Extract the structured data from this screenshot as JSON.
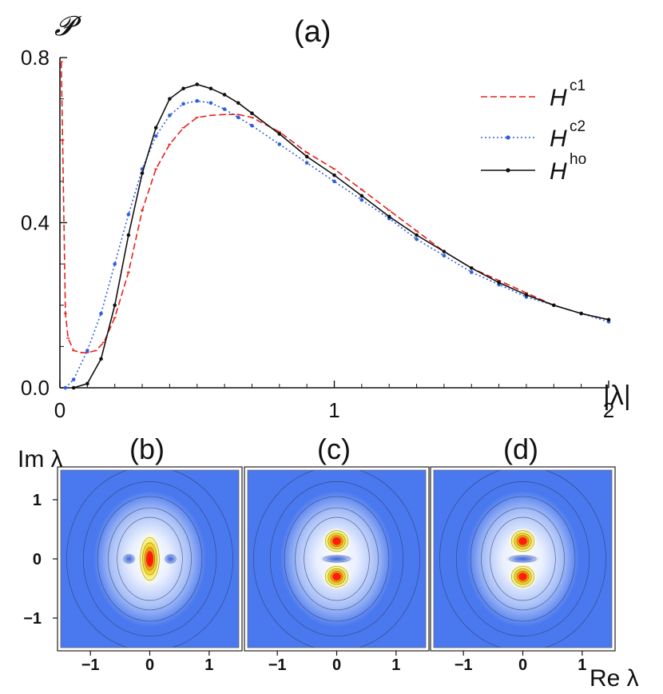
{
  "colors": {
    "red": "#e8221c",
    "blue": "#2f5fe0",
    "black": "#111111",
    "panel_bg": "#4a78ee"
  },
  "main_chart": {
    "panel_label": "(a)",
    "ylabel": "𝓟",
    "xlabel": "|λ|",
    "xlim": [
      0,
      2
    ],
    "ylim": [
      0,
      0.8
    ],
    "x_ticks": [
      {
        "v": 0,
        "label": "0"
      },
      {
        "v": 1,
        "label": "1"
      },
      {
        "v": 2,
        "label": "2"
      }
    ],
    "y_ticks": [
      {
        "v": 0,
        "label": "0.0"
      },
      {
        "v": 0.4,
        "label": "0.4"
      },
      {
        "v": 0.8,
        "label": "0.8"
      }
    ],
    "legend": [
      {
        "base": "H",
        "sup": "c1"
      },
      {
        "base": "H",
        "sup": "c2"
      },
      {
        "base": "H",
        "sup": "ho"
      }
    ]
  },
  "chart_data": [
    {
      "type": "line",
      "title": "(a)",
      "xlabel": "|λ|",
      "ylabel": "𝓟",
      "xlim": [
        0,
        2
      ],
      "ylim": [
        0,
        0.8
      ],
      "legend_position": "top-right",
      "series": [
        {
          "name": "H^c1",
          "x": [
            0.005,
            0.01,
            0.02,
            0.03,
            0.05,
            0.08,
            0.1,
            0.13,
            0.16,
            0.2,
            0.25,
            0.3,
            0.35,
            0.4,
            0.45,
            0.5,
            0.55,
            0.6,
            0.65,
            0.7,
            0.8,
            0.9,
            1.0,
            1.1,
            1.2,
            1.3,
            1.4,
            1.5,
            1.6,
            1.7,
            1.8,
            1.9,
            2.0
          ],
          "y": [
            0.79,
            0.6,
            0.18,
            0.12,
            0.09,
            0.085,
            0.085,
            0.09,
            0.11,
            0.17,
            0.28,
            0.43,
            0.53,
            0.59,
            0.63,
            0.655,
            0.66,
            0.662,
            0.662,
            0.655,
            0.62,
            0.57,
            0.53,
            0.48,
            0.43,
            0.38,
            0.33,
            0.29,
            0.26,
            0.23,
            0.2,
            0.18,
            0.165
          ]
        },
        {
          "name": "H^c2",
          "x": [
            0.02,
            0.05,
            0.1,
            0.15,
            0.2,
            0.25,
            0.3,
            0.35,
            0.4,
            0.45,
            0.5,
            0.55,
            0.6,
            0.65,
            0.7,
            0.8,
            0.9,
            1.0,
            1.1,
            1.2,
            1.3,
            1.4,
            1.5,
            1.6,
            1.7,
            1.8,
            1.9,
            2.0
          ],
          "y": [
            0.0,
            0.02,
            0.09,
            0.18,
            0.3,
            0.42,
            0.53,
            0.61,
            0.66,
            0.688,
            0.695,
            0.69,
            0.675,
            0.655,
            0.635,
            0.59,
            0.545,
            0.5,
            0.455,
            0.41,
            0.36,
            0.32,
            0.28,
            0.25,
            0.22,
            0.2,
            0.18,
            0.16
          ]
        },
        {
          "name": "H^ho",
          "x": [
            0.05,
            0.1,
            0.15,
            0.2,
            0.25,
            0.3,
            0.35,
            0.4,
            0.45,
            0.5,
            0.55,
            0.6,
            0.65,
            0.7,
            0.8,
            0.9,
            1.0,
            1.1,
            1.2,
            1.3,
            1.4,
            1.5,
            1.6,
            1.7,
            1.8,
            1.9,
            2.0
          ],
          "y": [
            0.0,
            0.01,
            0.07,
            0.2,
            0.37,
            0.52,
            0.63,
            0.7,
            0.725,
            0.735,
            0.725,
            0.71,
            0.69,
            0.665,
            0.615,
            0.56,
            0.515,
            0.465,
            0.415,
            0.37,
            0.33,
            0.29,
            0.255,
            0.225,
            0.2,
            0.18,
            0.165
          ]
        }
      ]
    },
    {
      "type": "heatmap",
      "title": "(b)",
      "xlabel": "Re λ",
      "ylabel": "Im λ",
      "xlim": [
        -1.5,
        1.5
      ],
      "ylim": [
        -1.5,
        1.5
      ],
      "peaks": [
        {
          "x": 0,
          "y": 0
        }
      ],
      "depression": [
        {
          "x": -0.35,
          "y": 0
        },
        {
          "x": 0.35,
          "y": 0
        }
      ]
    },
    {
      "type": "heatmap",
      "title": "(c)",
      "xlabel": "Re λ",
      "ylabel": "Im λ",
      "xlim": [
        -1.5,
        1.5
      ],
      "ylim": [
        -1.5,
        1.5
      ],
      "peaks": [
        {
          "x": 0,
          "y": 0.3
        },
        {
          "x": 0,
          "y": -0.3
        }
      ],
      "depression": [
        {
          "x": 0,
          "y": 0
        }
      ]
    },
    {
      "type": "heatmap",
      "title": "(d)",
      "xlabel": "Re λ",
      "ylabel": "Im λ",
      "xlim": [
        -1.5,
        1.5
      ],
      "ylim": [
        -1.5,
        1.5
      ],
      "peaks": [
        {
          "x": 0,
          "y": 0.3
        },
        {
          "x": 0,
          "y": -0.3
        }
      ],
      "depression": [
        {
          "x": 0,
          "y": 0
        }
      ]
    }
  ],
  "bottom": {
    "ylabel": "Im λ",
    "xlabel": "Re λ",
    "panels": [
      "(b)",
      "(c)",
      "(d)"
    ],
    "x_ticks": [
      {
        "v": -1,
        "label": "−1"
      },
      {
        "v": 0,
        "label": "0"
      },
      {
        "v": 1,
        "label": "1"
      }
    ],
    "y_ticks": [
      {
        "v": 1,
        "label": "1"
      },
      {
        "v": 0,
        "label": "0"
      },
      {
        "v": -1,
        "label": "−1"
      }
    ]
  }
}
